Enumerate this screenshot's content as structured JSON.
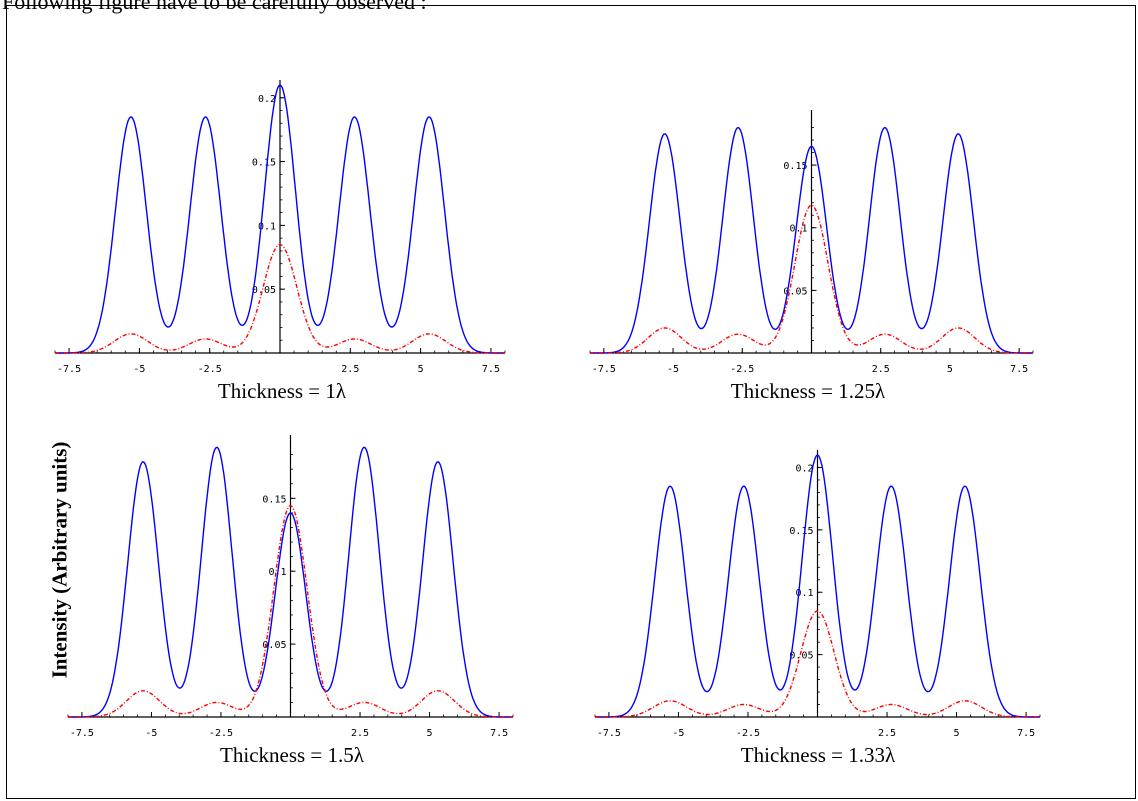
{
  "header_text": "Following figure have to be carefully observed :",
  "ylabel": "Intensity (Arbitrary units)",
  "chart_data": [
    {
      "type": "line",
      "caption": "Thickness = 1λ",
      "xlim": [
        -8,
        8
      ],
      "ylim": [
        0,
        0.21
      ],
      "x_ticks": [
        -7.5,
        -5,
        -2.5,
        2.5,
        5,
        7.5
      ],
      "x_tick_labels": [
        "-7.5",
        "-5",
        "-2.5",
        "2.5",
        "5",
        "7.5"
      ],
      "y_ticks": [
        0.05,
        0.1,
        0.15,
        0.2
      ],
      "y_tick_labels": [
        "0.05",
        "0.1",
        "0.15",
        "0.2"
      ],
      "series": [
        {
          "color": "#0000ff",
          "style": "solid",
          "peaks": [
            {
              "x": -5.3,
              "y": 0.185
            },
            {
              "x": -2.65,
              "y": 0.185
            },
            {
              "x": 0,
              "y": 0.21
            },
            {
              "x": 2.65,
              "y": 0.185
            },
            {
              "x": 5.3,
              "y": 0.185
            }
          ]
        },
        {
          "color": "#ff0000",
          "style": "dash-dot",
          "peaks": [
            {
              "x": -5.3,
              "y": 0.015
            },
            {
              "x": -2.65,
              "y": 0.011
            },
            {
              "x": 0,
              "y": 0.085
            },
            {
              "x": 2.65,
              "y": 0.011
            },
            {
              "x": 5.3,
              "y": 0.015
            }
          ]
        }
      ]
    },
    {
      "type": "line",
      "caption": "Thickness = 1.25λ",
      "xlim": [
        -8,
        8
      ],
      "ylim": [
        0,
        0.19
      ],
      "x_ticks": [
        -7.5,
        -5,
        -2.5,
        2.5,
        5,
        7.5
      ],
      "x_tick_labels": [
        "-7.5",
        "-5",
        "-2.5",
        "2.5",
        "5",
        "7.5"
      ],
      "y_ticks": [
        0.05,
        0.1,
        0.15
      ],
      "y_tick_labels": [
        "0.05",
        "0.1",
        "0.15"
      ],
      "series": [
        {
          "color": "#0000ff",
          "style": "solid",
          "peaks": [
            {
              "x": -5.3,
              "y": 0.175
            },
            {
              "x": -2.65,
              "y": 0.18
            },
            {
              "x": 0,
              "y": 0.165
            },
            {
              "x": 2.65,
              "y": 0.18
            },
            {
              "x": 5.3,
              "y": 0.175
            }
          ]
        },
        {
          "color": "#ff0000",
          "style": "dash-dot",
          "peaks": [
            {
              "x": -5.3,
              "y": 0.02
            },
            {
              "x": -2.65,
              "y": 0.015
            },
            {
              "x": 0,
              "y": 0.118
            },
            {
              "x": 2.65,
              "y": 0.015
            },
            {
              "x": 5.3,
              "y": 0.02
            }
          ]
        }
      ]
    },
    {
      "type": "line",
      "caption": "Thickness = 1.5λ",
      "xlim": [
        -8,
        8
      ],
      "ylim": [
        0,
        0.19
      ],
      "x_ticks": [
        -7.5,
        -5,
        -2.5,
        2.5,
        5,
        7.5
      ],
      "x_tick_labels": [
        "-7.5",
        "-5",
        "-2.5",
        "2.5",
        "5",
        "7.5"
      ],
      "y_ticks": [
        0.05,
        0.1,
        0.15
      ],
      "y_tick_labels": [
        "0.05",
        "0.1",
        "0.15"
      ],
      "series": [
        {
          "color": "#0000ff",
          "style": "solid",
          "peaks": [
            {
              "x": -5.3,
              "y": 0.175
            },
            {
              "x": -2.65,
              "y": 0.185
            },
            {
              "x": 0,
              "y": 0.14
            },
            {
              "x": 2.65,
              "y": 0.185
            },
            {
              "x": 5.3,
              "y": 0.175
            }
          ]
        },
        {
          "color": "#ff0000",
          "style": "dash-dot",
          "peaks": [
            {
              "x": -5.3,
              "y": 0.018
            },
            {
              "x": -2.65,
              "y": 0.01
            },
            {
              "x": 0,
              "y": 0.145
            },
            {
              "x": 2.65,
              "y": 0.01
            },
            {
              "x": 5.3,
              "y": 0.018
            }
          ]
        }
      ]
    },
    {
      "type": "line",
      "caption": "Thickness = 1.33λ",
      "xlim": [
        -8,
        8
      ],
      "ylim": [
        0,
        0.21
      ],
      "x_ticks": [
        -7.5,
        -5,
        -2.5,
        2.5,
        5,
        7.5
      ],
      "x_tick_labels": [
        "-7.5",
        "-5",
        "-2.5",
        "2.5",
        "5",
        "7.5"
      ],
      "y_ticks": [
        0.05,
        0.1,
        0.15,
        0.2
      ],
      "y_tick_labels": [
        "0.05",
        "0.1",
        "0.15",
        "0.2"
      ],
      "series": [
        {
          "color": "#0000ff",
          "style": "solid",
          "peaks": [
            {
              "x": -5.3,
              "y": 0.185
            },
            {
              "x": -2.65,
              "y": 0.185
            },
            {
              "x": 0,
              "y": 0.21
            },
            {
              "x": 2.65,
              "y": 0.185
            },
            {
              "x": 5.3,
              "y": 0.185
            }
          ]
        },
        {
          "color": "#ff0000",
          "style": "dash-dot",
          "peaks": [
            {
              "x": -5.3,
              "y": 0.013
            },
            {
              "x": -2.65,
              "y": 0.01
            },
            {
              "x": 0,
              "y": 0.085
            },
            {
              "x": 2.65,
              "y": 0.01
            },
            {
              "x": 5.3,
              "y": 0.013
            }
          ]
        }
      ]
    }
  ]
}
